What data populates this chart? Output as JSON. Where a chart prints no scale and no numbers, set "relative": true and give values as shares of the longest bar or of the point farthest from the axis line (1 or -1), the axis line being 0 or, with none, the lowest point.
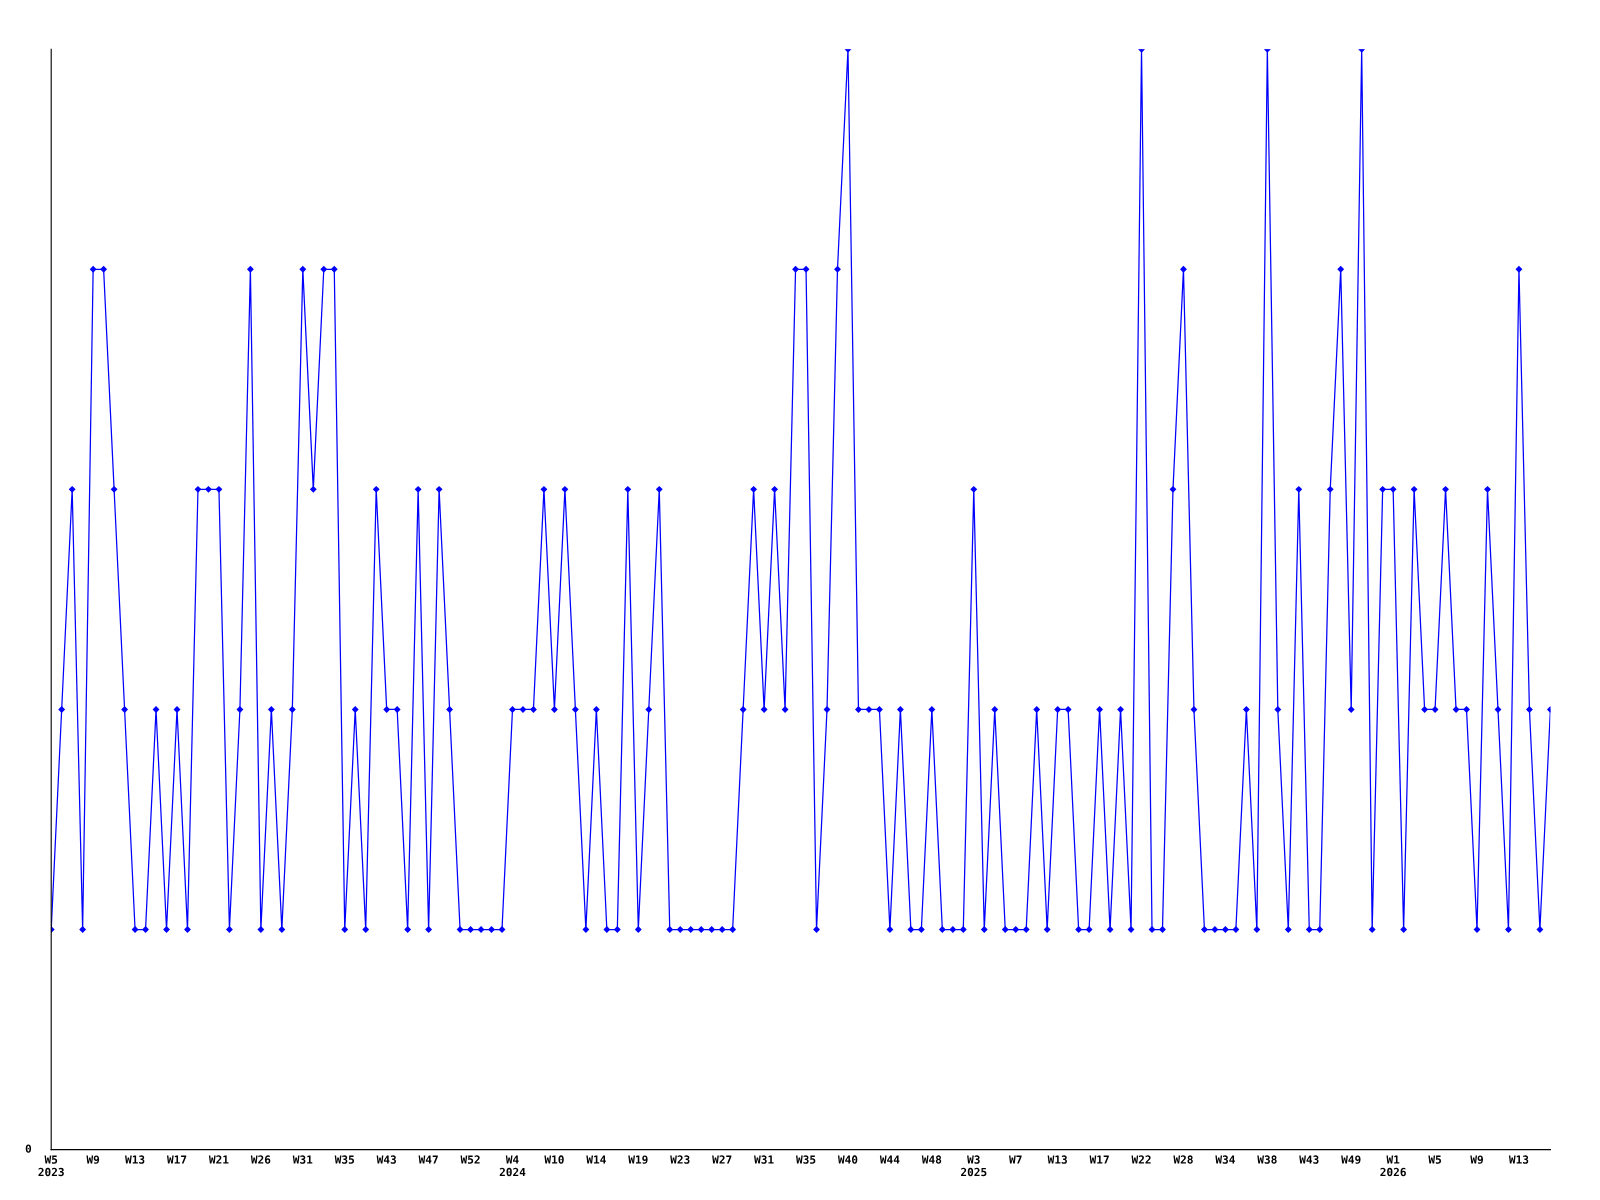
{
  "chart_data": {
    "type": "line",
    "relative": true,
    "marker": "diamond",
    "line_style": "solid",
    "grid": false,
    "legend": false,
    "annotations": [
      "0"
    ],
    "categories": [
      "W5\n2023",
      null,
      null,
      null,
      "W9",
      null,
      null,
      null,
      "W13",
      null,
      null,
      null,
      "W17",
      null,
      null,
      null,
      "W21",
      null,
      null,
      null,
      "W26",
      null,
      null,
      null,
      "W31",
      null,
      null,
      null,
      "W35",
      null,
      null,
      null,
      "W43",
      null,
      null,
      null,
      "W47",
      null,
      null,
      null,
      "W52",
      null,
      null,
      null,
      "W4\n2024",
      null,
      null,
      null,
      "W10",
      null,
      null,
      null,
      "W14",
      null,
      null,
      null,
      "W19",
      null,
      null,
      null,
      "W23",
      null,
      null,
      null,
      "W27",
      null,
      null,
      null,
      "W31",
      null,
      null,
      null,
      "W35",
      null,
      null,
      null,
      "W40",
      null,
      null,
      null,
      "W44",
      null,
      null,
      null,
      "W48",
      null,
      null,
      null,
      "W3\n2025",
      null,
      null,
      null,
      "W7",
      null,
      null,
      null,
      "W13",
      null,
      null,
      null,
      "W17",
      null,
      null,
      null,
      "W22",
      null,
      null,
      null,
      "W28",
      null,
      null,
      null,
      "W34",
      null,
      null,
      null,
      "W38",
      null,
      null,
      null,
      "W43",
      null,
      null,
      null,
      "W49",
      null,
      null,
      null,
      "W1\n2026",
      null,
      null,
      null,
      "W5",
      null,
      null,
      null,
      "W9",
      null,
      null,
      null,
      "W13",
      null,
      null,
      null
    ],
    "series": [
      {
        "color": "#0000ff",
        "values": [
          0.2,
          0.4,
          0.6,
          0.2,
          0.8,
          0.8,
          0.6,
          0.4,
          0.2,
          0.2,
          0.4,
          0.2,
          0.4,
          0.2,
          0.6,
          0.6,
          0.6,
          0.2,
          0.4,
          0.8,
          0.2,
          0.4,
          0.2,
          0.4,
          0.8,
          0.6,
          0.8,
          0.8,
          0.2,
          0.4,
          0.2,
          0.6,
          0.4,
          0.4,
          0.2,
          0.6,
          0.2,
          0.6,
          0.4,
          0.2,
          0.2,
          0.2,
          0.2,
          0.2,
          0.4,
          0.4,
          0.4,
          0.6,
          0.4,
          0.6,
          0.4,
          0.2,
          0.4,
          0.2,
          0.2,
          0.6,
          0.2,
          0.4,
          0.6,
          0.2,
          0.2,
          0.2,
          0.2,
          0.2,
          0.2,
          0.2,
          0.4,
          0.6,
          0.4,
          0.6,
          0.4,
          0.8,
          0.8,
          0.2,
          0.4,
          0.8,
          1.0,
          0.4,
          0.4,
          0.4,
          0.2,
          0.4,
          0.2,
          0.2,
          0.4,
          0.2,
          0.2,
          0.2,
          0.6,
          0.2,
          0.4,
          0.2,
          0.2,
          0.2,
          0.4,
          0.2,
          0.4,
          0.4,
          0.2,
          0.2,
          0.4,
          0.2,
          0.4,
          0.2,
          1.0,
          0.2,
          0.2,
          0.6,
          0.8,
          0.4,
          0.2,
          0.2,
          0.2,
          0.2,
          0.4,
          0.2,
          1.0,
          0.4,
          0.2,
          0.6,
          0.2,
          0.2,
          0.6,
          0.8,
          0.4,
          1.0,
          0.2,
          0.6,
          0.6,
          0.2,
          0.6,
          0.4,
          0.4,
          0.6,
          0.4,
          0.4,
          0.2,
          0.6,
          0.4,
          0.2,
          0.8,
          0.4,
          0.2,
          0.4
        ]
      }
    ]
  }
}
